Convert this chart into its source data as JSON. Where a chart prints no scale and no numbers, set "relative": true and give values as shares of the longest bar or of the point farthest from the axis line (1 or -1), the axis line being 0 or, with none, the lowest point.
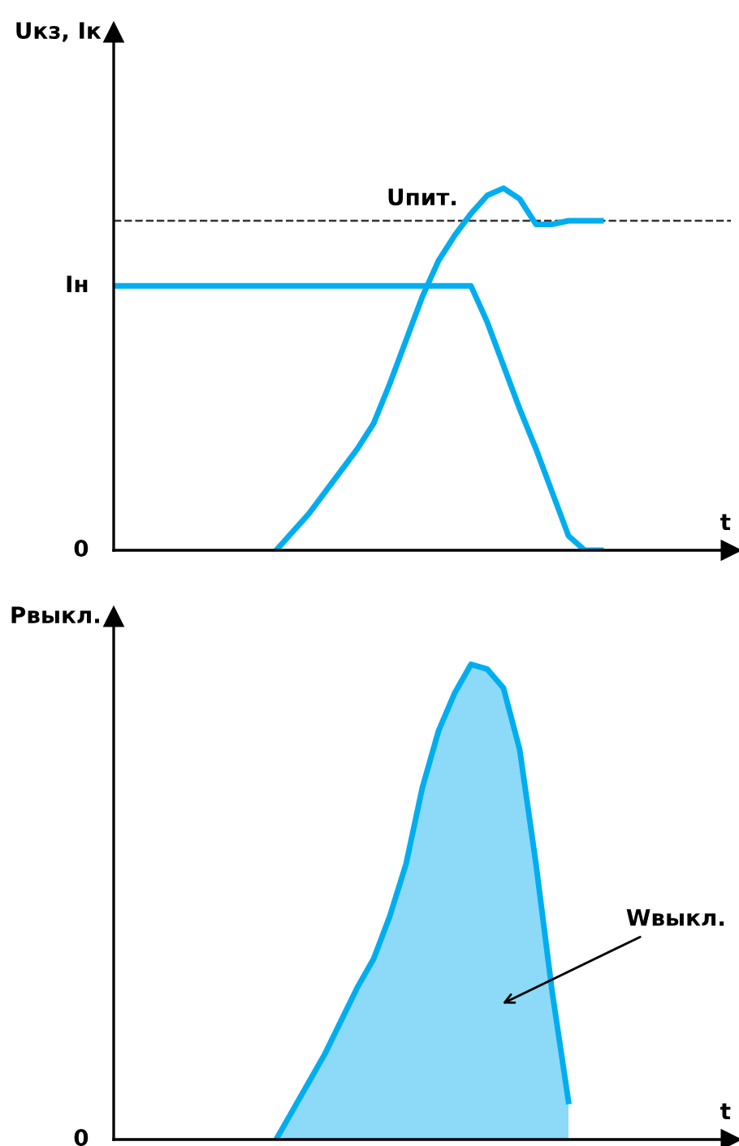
{
  "chart_data": [
    {
      "type": "line",
      "relative": true,
      "ylabel": "Uкз, Iк",
      "xlabel": "t",
      "marker": "none",
      "line_style": "solid",
      "categories": [
        null,
        null,
        null,
        null,
        null,
        null,
        null,
        null,
        null,
        null,
        null,
        null,
        null,
        null,
        null,
        null,
        null,
        null,
        null,
        null,
        null,
        null,
        null,
        null,
        null,
        null,
        null,
        null,
        null,
        null,
        null,
        null,
        null,
        null,
        null,
        null,
        null,
        null
      ],
      "series": [
        {
          "color": "#00aeef",
          "values": [
            0.73,
            0.73,
            0.73,
            0.73,
            0.73,
            0.73,
            0.73,
            0.73,
            0.73,
            0.73,
            0.73,
            0.73,
            0.73,
            0.73,
            0.73,
            0.73,
            0.73,
            0.73,
            0.73,
            0.73,
            0.73,
            0.73,
            0.73,
            0.63,
            0.51,
            0.39,
            0.28,
            0.16,
            0.04,
            0,
            0,
            null,
            null,
            null,
            null,
            null,
            null,
            null
          ]
        },
        {
          "color": "#00aeef",
          "values": [
            null,
            null,
            null,
            null,
            null,
            null,
            null,
            null,
            null,
            null,
            0,
            0.05,
            0.1,
            0.16,
            0.22,
            0.28,
            0.35,
            0.46,
            0.58,
            0.7,
            0.8,
            0.87,
            0.93,
            0.98,
            1.0,
            0.97,
            0.9,
            0.9,
            0.91,
            0.91,
            0.91,
            null,
            null,
            null,
            null,
            null,
            null,
            null
          ]
        }
      ],
      "ref_lines": [
        {
          "axis": "y",
          "value": 0.91,
          "label": "Uпит.",
          "color": "#333333",
          "line_style": "dashed"
        }
      ],
      "annotations": [
        "Iн",
        "0"
      ]
    },
    {
      "type": "area",
      "relative": true,
      "ylabel": "Pвыкл.",
      "xlabel": "t",
      "marker": "none",
      "line_style": "solid",
      "categories": [
        null,
        null,
        null,
        null,
        null,
        null,
        null,
        null,
        null,
        null,
        null,
        null,
        null,
        null,
        null,
        null,
        null,
        null,
        null,
        null,
        null,
        null,
        null,
        null,
        null,
        null,
        null,
        null,
        null,
        null,
        null,
        null,
        null,
        null,
        null,
        null,
        null,
        null
      ],
      "series": [
        {
          "color": "#00aeef",
          "values": [
            null,
            null,
            null,
            null,
            null,
            null,
            null,
            null,
            null,
            null,
            0,
            0.06,
            0.12,
            0.18,
            0.25,
            0.32,
            0.38,
            0.47,
            0.58,
            0.74,
            0.86,
            0.94,
            1.0,
            0.99,
            0.95,
            0.82,
            0.58,
            0.31,
            0.08,
            null,
            null,
            null,
            null,
            null,
            null,
            null,
            null,
            null
          ]
        }
      ],
      "annotations": [
        "Wвыкл.",
        "0"
      ]
    }
  ]
}
